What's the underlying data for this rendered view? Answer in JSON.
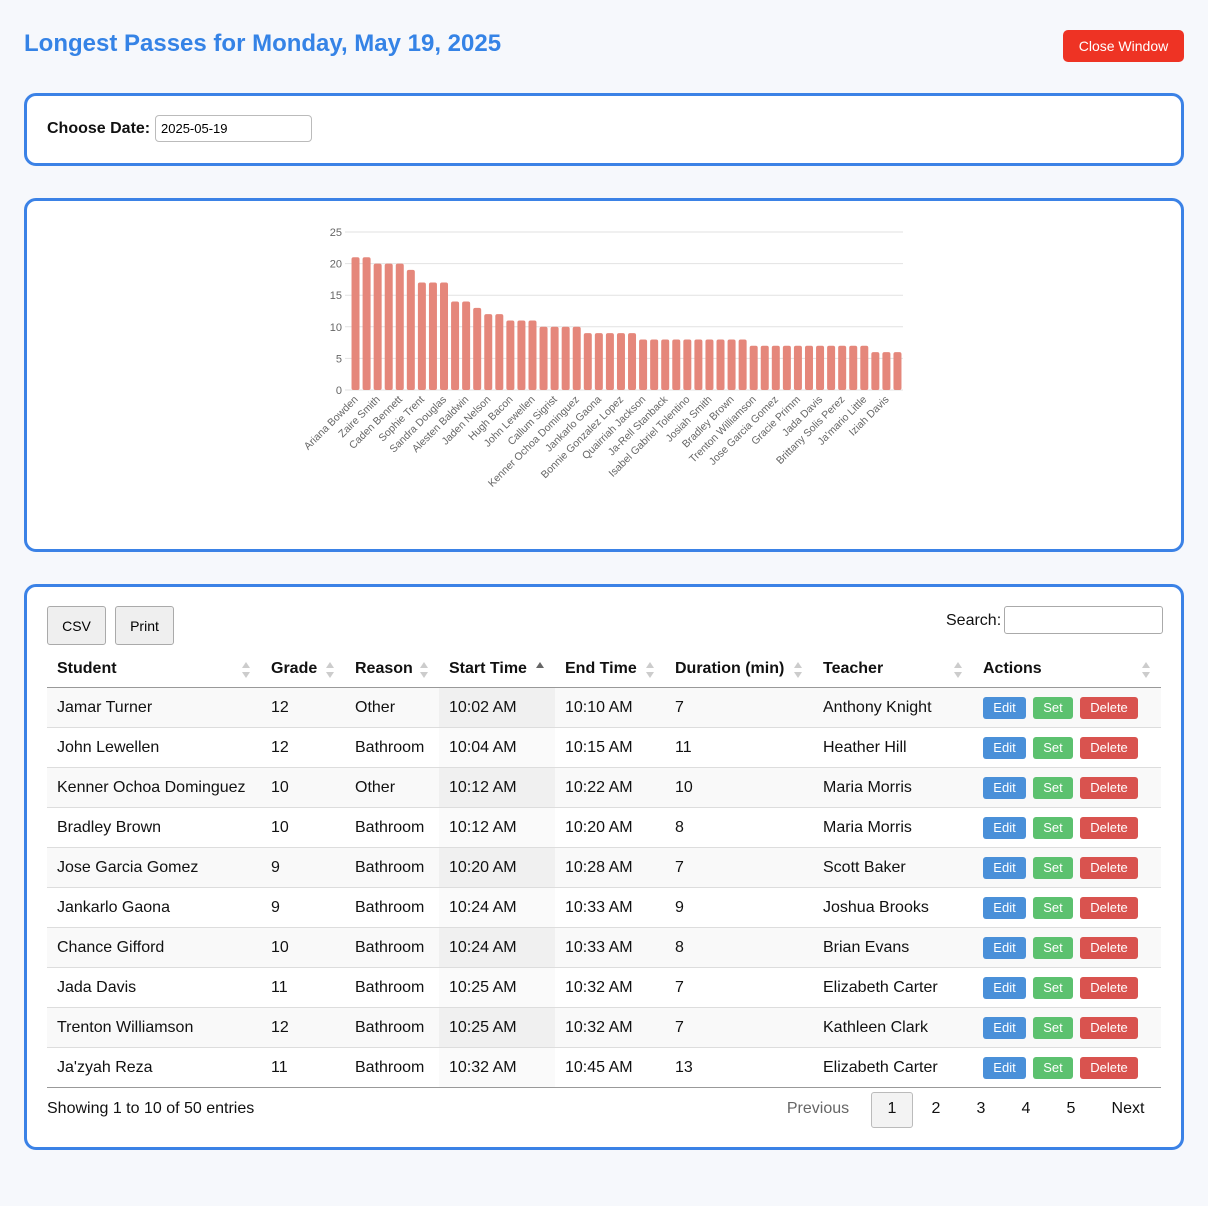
{
  "header": {
    "title": "Longest Passes for Monday, May 19, 2025",
    "close_button": "Close Window"
  },
  "date_picker": {
    "label": "Choose Date:",
    "value": "2025-05-19"
  },
  "chart_data": {
    "type": "bar",
    "categories": [
      "Ariana Bowden",
      null,
      "Zaire Smith",
      null,
      "Caden Bennett",
      null,
      "Sophie Trent",
      null,
      "Sandra Douglas",
      null,
      "Alesten Baldwin",
      null,
      "Jaden Nelson",
      null,
      "Hugh Bacon",
      null,
      "John Lewellen",
      null,
      "Callum Sigrist",
      null,
      "Kenner Ochoa Dominguez",
      null,
      "Jankarlo Gaona",
      null,
      "Bonnie Gonzalez Lopez",
      null,
      "Quairriah Jackson",
      null,
      "Ja-Rell Stanback",
      null,
      "Isabel Gabriel Tolentino",
      null,
      "Josiah Smith",
      null,
      "Bradley Brown",
      null,
      "Trenton Williamson",
      null,
      "Jose Garcia Gomez",
      null,
      "Gracie Primm",
      null,
      "Jada Davis",
      null,
      "Brittany Solis Perez",
      null,
      "Ja'mario Little",
      null,
      "Iziah Davis",
      null
    ],
    "values": [
      21,
      21,
      20,
      20,
      20,
      19,
      17,
      17,
      17,
      14,
      14,
      13,
      12,
      12,
      11,
      11,
      11,
      10,
      10,
      10,
      10,
      9,
      9,
      9,
      9,
      9,
      8,
      8,
      8,
      8,
      8,
      8,
      8,
      8,
      8,
      8,
      7,
      7,
      7,
      7,
      7,
      7,
      7,
      7,
      7,
      7,
      7,
      6,
      6,
      6
    ],
    "color": "#e5877b",
    "ylim": [
      0,
      25
    ],
    "yticks": [
      0,
      5,
      10,
      15,
      20,
      25
    ],
    "grid": true
  },
  "toolbar": {
    "buttons": [
      "CSV",
      "Print"
    ],
    "search_label": "Search:"
  },
  "table": {
    "columns": [
      "Student",
      "Grade",
      "Reason",
      "Start Time",
      "End Time",
      "Duration (min)",
      "Teacher",
      "Actions"
    ],
    "rows": [
      [
        "Jamar Turner",
        "12",
        "Other",
        "10:02 AM",
        "10:10 AM",
        "7",
        "Anthony Knight"
      ],
      [
        "John Lewellen",
        "12",
        "Bathroom",
        "10:04 AM",
        "10:15 AM",
        "11",
        "Heather Hill"
      ],
      [
        "Kenner Ochoa Dominguez",
        "10",
        "Other",
        "10:12 AM",
        "10:22 AM",
        "10",
        "Maria Morris"
      ],
      [
        "Bradley Brown",
        "10",
        "Bathroom",
        "10:12 AM",
        "10:20 AM",
        "8",
        "Maria Morris"
      ],
      [
        "Jose Garcia Gomez",
        "9",
        "Bathroom",
        "10:20 AM",
        "10:28 AM",
        "7",
        "Scott Baker"
      ],
      [
        "Jankarlo Gaona",
        "9",
        "Bathroom",
        "10:24 AM",
        "10:33 AM",
        "9",
        "Joshua Brooks"
      ],
      [
        "Chance Gifford",
        "10",
        "Bathroom",
        "10:24 AM",
        "10:33 AM",
        "8",
        "Brian Evans"
      ],
      [
        "Jada Davis",
        "11",
        "Bathroom",
        "10:25 AM",
        "10:32 AM",
        "7",
        "Elizabeth Carter"
      ],
      [
        "Trenton Williamson",
        "12",
        "Bathroom",
        "10:25 AM",
        "10:32 AM",
        "7",
        "Kathleen Clark"
      ],
      [
        "Ja'zyah Reza",
        "11",
        "Bathroom",
        "10:32 AM",
        "10:45 AM",
        "13",
        "Elizabeth Carter"
      ]
    ],
    "actions": [
      "Edit",
      "Set",
      "Delete"
    ]
  },
  "footer": {
    "info": "Showing 1 to 10 of 50 entries",
    "previous": "Previous",
    "pages": [
      "1",
      "2",
      "3",
      "4",
      "5"
    ],
    "next": "Next"
  }
}
